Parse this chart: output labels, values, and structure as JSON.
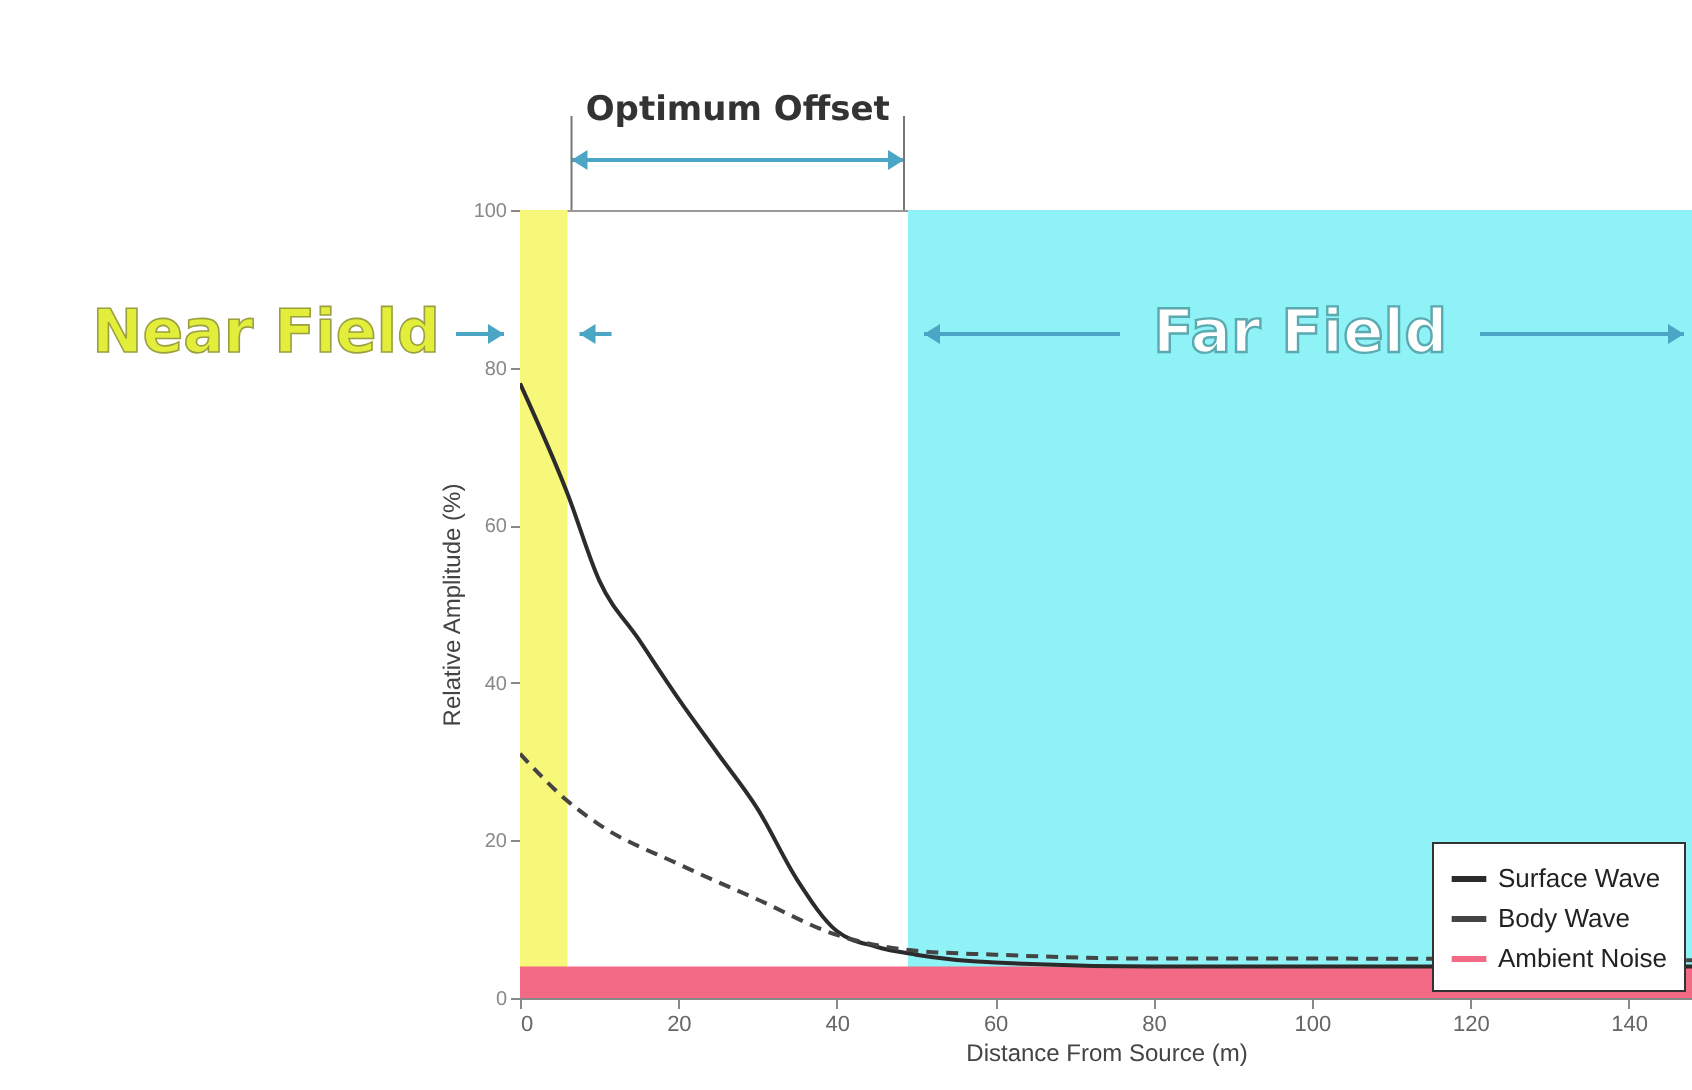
{
  "chart_data": {
    "type": "line",
    "xlabel": "Distance From Source (m)",
    "ylabel": "Relative Amplitude (%)",
    "xlim": [
      0,
      148
    ],
    "ylim": [
      0,
      100
    ],
    "xticks": [
      0,
      20,
      40,
      60,
      80,
      100,
      120,
      140
    ],
    "yticks": [
      0,
      20,
      40,
      60,
      80,
      100
    ],
    "series": [
      {
        "name": "Surface Wave",
        "color": "#2b2b2b",
        "line_style": "solid",
        "x": [
          0,
          6,
          10,
          15,
          20,
          25,
          30,
          35,
          40,
          45,
          50,
          60,
          80,
          100,
          148
        ],
        "values": [
          78,
          64,
          53,
          45.5,
          38,
          31,
          24,
          15,
          8.5,
          6.5,
          5.5,
          4.5,
          4,
          4,
          4
        ]
      },
      {
        "name": "Body Wave",
        "color": "#444444",
        "line_style": "dashed",
        "x": [
          0,
          6,
          10,
          20,
          30,
          40,
          50,
          60,
          80,
          100,
          148
        ],
        "values": [
          31,
          25,
          22,
          17,
          12.5,
          8,
          6,
          5.5,
          5,
          5,
          4.8
        ]
      },
      {
        "name": "Ambient Noise",
        "type": "area",
        "color": "#f26a86",
        "x": [
          0,
          148
        ],
        "values": [
          4,
          4
        ]
      }
    ],
    "bands": [
      {
        "axis": "x",
        "from": 0,
        "to": 6,
        "label": "Near Field",
        "color": "#f7f77a"
      },
      {
        "axis": "x",
        "from": 49,
        "to": 148,
        "label": "Far Field",
        "color": "#8ff2f6"
      }
    ],
    "annotations": [
      "Optimum Offset"
    ],
    "legend": "bottom right"
  }
}
